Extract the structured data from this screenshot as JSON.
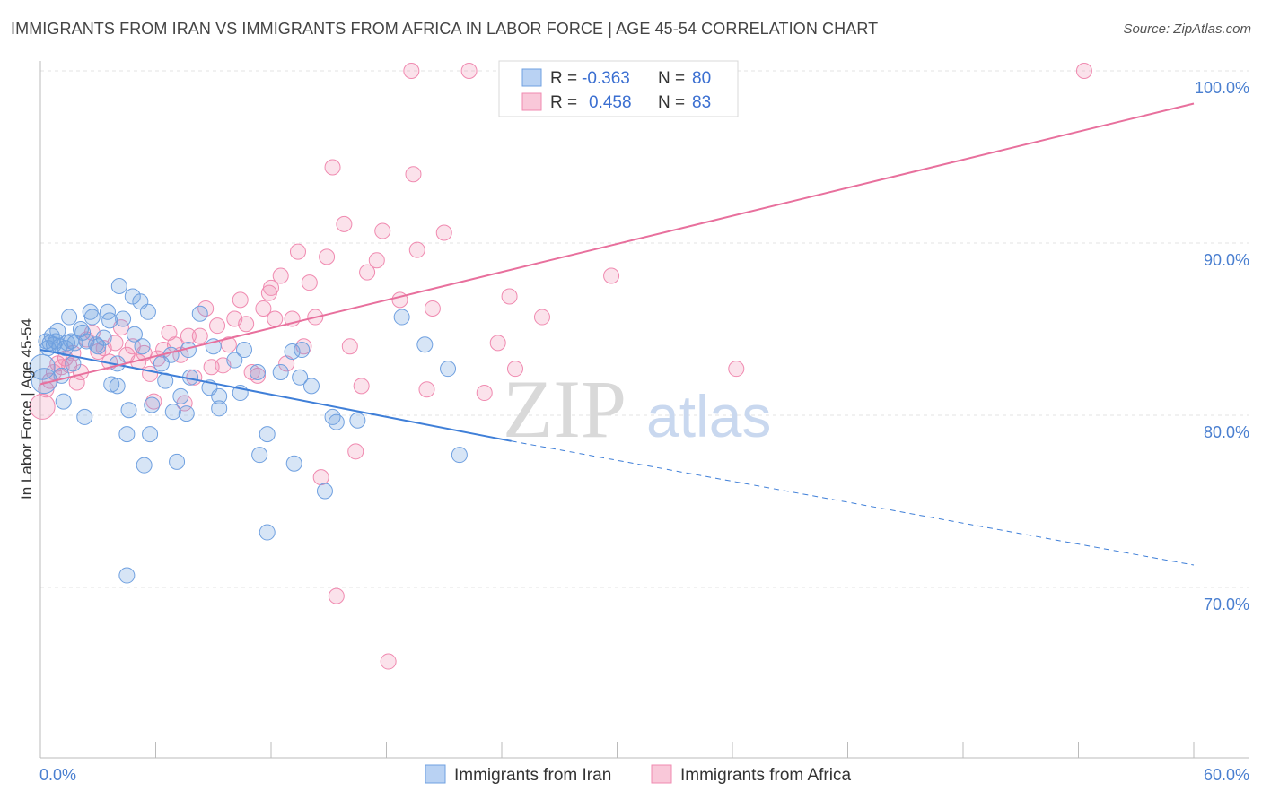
{
  "title": "IMMIGRANTS FROM IRAN VS IMMIGRANTS FROM AFRICA IN LABOR FORCE | AGE 45-54 CORRELATION CHART",
  "source": "Source: ZipAtlas.com",
  "watermark": {
    "zip": "ZIP",
    "atlas": "atlas"
  },
  "legend": {
    "r_label": "R =",
    "n_label": "N =",
    "rows": [
      {
        "r": "-0.363",
        "n": "80",
        "color": "#6fa0e0"
      },
      {
        "r": "0.458",
        "n": "83",
        "color": "#f08ab0"
      }
    ]
  },
  "bottom_legend": [
    "Immigrants from Iran",
    "Immigrants from Africa"
  ],
  "chart_data": {
    "type": "scatter",
    "title": "IMMIGRANTS FROM IRAN VS IMMIGRANTS FROM AFRICA IN LABOR FORCE | AGE 45-54 CORRELATION CHART",
    "xlabel": "",
    "ylabel": "In Labor Force | Age 45-54",
    "xlim": [
      0,
      60
    ],
    "ylim": [
      60,
      100
    ],
    "x_tick_labels": [
      "0.0%",
      "60.0%"
    ],
    "y_ticks": [
      70,
      80,
      90,
      100
    ],
    "y_tick_labels": [
      "70.0%",
      "80.0%",
      "90.0%",
      "100.0%"
    ],
    "grid": true,
    "legend_position": "top-center",
    "series": [
      {
        "name": "Immigrants from Iran",
        "color": "#6fa0e0",
        "r": -0.363,
        "n": 80,
        "trend": {
          "x0": 0.0,
          "y0": 83.8,
          "x1": 24.5,
          "y1": 78.5,
          "dash_to_x": 60.0,
          "dash_to_y": 71.3
        },
        "points": [
          [
            0.1,
            82.8
          ],
          [
            0.2,
            82.0
          ],
          [
            0.3,
            84.3
          ],
          [
            0.4,
            83.9
          ],
          [
            0.5,
            84.2
          ],
          [
            0.6,
            84.6
          ],
          [
            0.7,
            84.1
          ],
          [
            0.8,
            84.3
          ],
          [
            0.9,
            84.9
          ],
          [
            1.0,
            84.0
          ],
          [
            1.1,
            82.3
          ],
          [
            1.2,
            80.8
          ],
          [
            1.3,
            83.9
          ],
          [
            1.4,
            84.2
          ],
          [
            1.5,
            85.7
          ],
          [
            1.6,
            84.3
          ],
          [
            1.7,
            83.0
          ],
          [
            1.8,
            84.2
          ],
          [
            2.1,
            85.0
          ],
          [
            2.2,
            84.8
          ],
          [
            2.3,
            79.9
          ],
          [
            2.4,
            84.3
          ],
          [
            2.6,
            86.0
          ],
          [
            2.7,
            85.7
          ],
          [
            2.9,
            84.1
          ],
          [
            3.0,
            84.0
          ],
          [
            3.3,
            84.5
          ],
          [
            3.5,
            86.0
          ],
          [
            3.6,
            85.5
          ],
          [
            3.7,
            81.8
          ],
          [
            4.0,
            83.0
          ],
          [
            4.0,
            81.7
          ],
          [
            4.1,
            87.5
          ],
          [
            4.3,
            85.6
          ],
          [
            4.5,
            78.9
          ],
          [
            4.6,
            80.3
          ],
          [
            4.8,
            86.9
          ],
          [
            4.9,
            84.7
          ],
          [
            5.2,
            86.6
          ],
          [
            5.3,
            84.0
          ],
          [
            5.4,
            77.1
          ],
          [
            5.6,
            86.0
          ],
          [
            5.7,
            78.9
          ],
          [
            5.8,
            80.6
          ],
          [
            6.3,
            83.0
          ],
          [
            6.8,
            83.5
          ],
          [
            7.1,
            77.3
          ],
          [
            7.3,
            81.1
          ],
          [
            6.9,
            80.2
          ],
          [
            7.6,
            80.1
          ],
          [
            7.7,
            83.8
          ],
          [
            7.8,
            82.2
          ],
          [
            8.3,
            85.9
          ],
          [
            8.8,
            81.6
          ],
          [
            9.3,
            81.1
          ],
          [
            9.3,
            80.4
          ],
          [
            10.1,
            83.2
          ],
          [
            10.6,
            83.8
          ],
          [
            10.4,
            81.3
          ],
          [
            11.3,
            82.5
          ],
          [
            11.4,
            77.7
          ],
          [
            11.8,
            78.9
          ],
          [
            11.8,
            73.2
          ],
          [
            13.2,
            77.2
          ],
          [
            13.5,
            82.2
          ],
          [
            13.1,
            83.7
          ],
          [
            13.6,
            83.8
          ],
          [
            14.1,
            81.7
          ],
          [
            14.8,
            75.6
          ],
          [
            15.2,
            79.9
          ],
          [
            15.4,
            79.6
          ],
          [
            16.5,
            79.7
          ],
          [
            18.8,
            85.7
          ],
          [
            20.0,
            84.1
          ],
          [
            21.2,
            82.7
          ],
          [
            21.8,
            77.7
          ],
          [
            4.5,
            70.7
          ],
          [
            12.5,
            82.5
          ],
          [
            6.5,
            82.0
          ],
          [
            9.0,
            84.0
          ]
        ]
      },
      {
        "name": "Immigrants from Africa",
        "color": "#f08ab0",
        "r": 0.458,
        "n": 83,
        "trend": {
          "x0": 0.0,
          "y0": 81.8,
          "x1": 60.0,
          "y1": 98.1
        },
        "points": [
          [
            0.1,
            80.5
          ],
          [
            0.3,
            81.5
          ],
          [
            0.5,
            82.0
          ],
          [
            0.7,
            82.5
          ],
          [
            0.9,
            83.0
          ],
          [
            1.1,
            82.8
          ],
          [
            1.3,
            83.3
          ],
          [
            1.5,
            82.9
          ],
          [
            1.7,
            83.6
          ],
          [
            1.9,
            81.9
          ],
          [
            2.1,
            82.5
          ],
          [
            2.4,
            84.4
          ],
          [
            2.7,
            84.8
          ],
          [
            3.0,
            83.7
          ],
          [
            3.3,
            83.9
          ],
          [
            3.6,
            83.1
          ],
          [
            3.9,
            84.2
          ],
          [
            4.2,
            85.1
          ],
          [
            4.5,
            83.5
          ],
          [
            4.8,
            84.0
          ],
          [
            5.1,
            83.1
          ],
          [
            5.4,
            83.6
          ],
          [
            5.7,
            82.4
          ],
          [
            5.9,
            80.8
          ],
          [
            6.1,
            83.3
          ],
          [
            6.4,
            83.8
          ],
          [
            6.7,
            84.8
          ],
          [
            7.0,
            84.1
          ],
          [
            7.3,
            83.5
          ],
          [
            7.5,
            80.7
          ],
          [
            7.7,
            84.6
          ],
          [
            8.0,
            82.2
          ],
          [
            8.3,
            84.6
          ],
          [
            8.6,
            86.2
          ],
          [
            8.9,
            82.8
          ],
          [
            9.2,
            85.2
          ],
          [
            9.5,
            82.9
          ],
          [
            9.8,
            84.1
          ],
          [
            10.1,
            85.6
          ],
          [
            10.4,
            86.7
          ],
          [
            10.7,
            85.3
          ],
          [
            11.0,
            82.5
          ],
          [
            11.3,
            82.3
          ],
          [
            11.6,
            86.2
          ],
          [
            11.9,
            87.1
          ],
          [
            12.2,
            85.6
          ],
          [
            12.5,
            88.1
          ],
          [
            12.8,
            83.0
          ],
          [
            13.1,
            85.6
          ],
          [
            13.4,
            89.5
          ],
          [
            13.7,
            84.0
          ],
          [
            14.0,
            87.7
          ],
          [
            14.3,
            85.7
          ],
          [
            14.6,
            76.4
          ],
          [
            14.9,
            89.2
          ],
          [
            15.2,
            94.4
          ],
          [
            15.4,
            69.5
          ],
          [
            15.8,
            91.1
          ],
          [
            16.1,
            84.0
          ],
          [
            16.4,
            77.9
          ],
          [
            16.7,
            81.7
          ],
          [
            17.0,
            88.3
          ],
          [
            17.5,
            89.0
          ],
          [
            17.8,
            90.7
          ],
          [
            18.1,
            65.7
          ],
          [
            18.7,
            86.7
          ],
          [
            19.4,
            94.0
          ],
          [
            19.6,
            89.6
          ],
          [
            20.1,
            81.5
          ],
          [
            20.4,
            86.2
          ],
          [
            21.0,
            90.6
          ],
          [
            22.3,
            100.0
          ],
          [
            23.1,
            81.3
          ],
          [
            23.8,
            84.2
          ],
          [
            24.4,
            86.9
          ],
          [
            24.7,
            82.7
          ],
          [
            26.1,
            85.7
          ],
          [
            29.3,
            100.0
          ],
          [
            29.7,
            88.1
          ],
          [
            36.2,
            82.7
          ],
          [
            54.3,
            100.0
          ],
          [
            19.3,
            100.0
          ],
          [
            12.0,
            87.4
          ]
        ]
      }
    ]
  }
}
